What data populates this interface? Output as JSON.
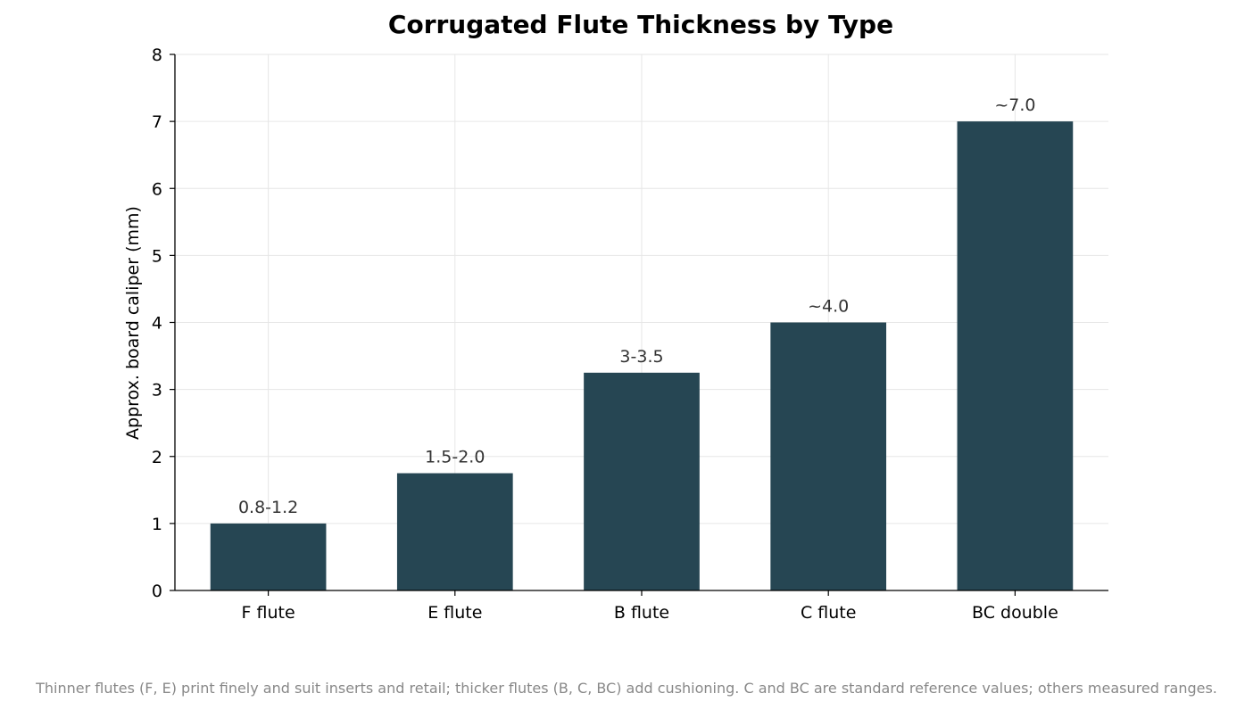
{
  "chart_data": {
    "type": "bar",
    "title": "Corrugated Flute Thickness by Type",
    "xlabel": "",
    "ylabel": "Approx. board caliper (mm)",
    "categories": [
      "F flute",
      "E flute",
      "B flute",
      "C flute",
      "BC double"
    ],
    "values": [
      1.0,
      1.75,
      3.25,
      4.0,
      7.0
    ],
    "data_labels": [
      "0.8-1.2",
      "1.5-2.0",
      "3-3.5",
      "~4.0",
      "~7.0"
    ],
    "ylim": [
      0,
      8
    ],
    "yticks": [
      0,
      1,
      2,
      3,
      4,
      5,
      6,
      7,
      8
    ],
    "grid": true,
    "bar_color": "#264653"
  },
  "footnote": "Thinner flutes (F, E) print finely and suit inserts and retail; thicker flutes (B, C, BC) add cushioning. C and BC are standard reference values; others measured ranges."
}
